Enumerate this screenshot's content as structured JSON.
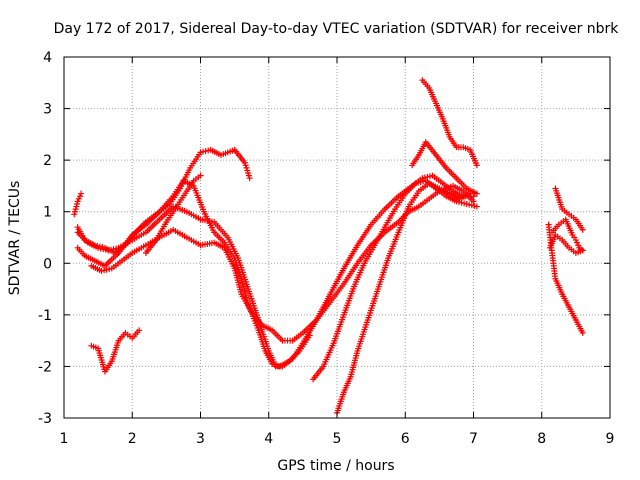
{
  "chart_data": {
    "type": "scatter",
    "title": "Day 172 of 2017, Sidereal Day-to-day VTEC variation (SDTVAR) for receiver nbrk",
    "xlabel": "GPS time / hours",
    "ylabel": "SDTVAR / TECUs",
    "xlim": [
      1,
      9
    ],
    "ylim": [
      -3,
      4
    ],
    "xticks": [
      "1",
      "2",
      "3",
      "4",
      "5",
      "6",
      "7",
      "8",
      "9"
    ],
    "yticks": [
      "-3",
      "-2",
      "-1",
      "0",
      "1",
      "2",
      "3",
      "4"
    ],
    "grid": true,
    "marker": "+",
    "color": "#ff0000",
    "series": [
      {
        "name": "arc1",
        "x": [
          1.2,
          1.3,
          1.45,
          1.6,
          1.75,
          1.9,
          2.05,
          2.2,
          2.4,
          2.55,
          2.7,
          2.85,
          3.0,
          3.15,
          3.3,
          3.5,
          3.65,
          3.72
        ],
        "y": [
          0.7,
          0.45,
          0.35,
          0.3,
          0.2,
          0.35,
          0.6,
          0.8,
          1.0,
          1.15,
          1.45,
          1.85,
          2.15,
          2.2,
          2.1,
          2.2,
          1.95,
          1.65
        ]
      },
      {
        "name": "arc2",
        "x": [
          1.2,
          1.3,
          1.45,
          1.6,
          1.8,
          2.0,
          2.2,
          2.4,
          2.6,
          2.75,
          2.9,
          3.05,
          3.2,
          3.35,
          3.5,
          3.6,
          3.7,
          3.85,
          3.95,
          4.05,
          4.15,
          4.3,
          4.45,
          4.6
        ],
        "y": [
          0.3,
          0.15,
          0.05,
          -0.05,
          0.2,
          0.55,
          0.75,
          1.0,
          1.3,
          1.6,
          1.5,
          1.0,
          0.6,
          0.4,
          0.1,
          -0.3,
          -0.8,
          -1.3,
          -1.7,
          -1.95,
          -2.0,
          -1.9,
          -1.7,
          -1.4
        ]
      },
      {
        "name": "arc3",
        "x": [
          1.2,
          1.35,
          1.5,
          1.65,
          1.8,
          2.0,
          2.2,
          2.4,
          2.6,
          2.8,
          3.0,
          3.2,
          3.4,
          3.55,
          3.7,
          3.85,
          4.0,
          4.1,
          4.2,
          4.35,
          4.5,
          4.7,
          4.9,
          5.1,
          5.3,
          5.5,
          5.7,
          5.9,
          6.1,
          6.25,
          6.4,
          6.55,
          6.7,
          6.85,
          7.0
        ],
        "y": [
          0.6,
          0.4,
          0.3,
          0.25,
          0.3,
          0.45,
          0.6,
          0.85,
          1.1,
          1.0,
          0.85,
          0.8,
          0.5,
          0.1,
          -0.5,
          -1.1,
          -1.7,
          -2.0,
          -2.0,
          -1.85,
          -1.55,
          -1.1,
          -0.6,
          -0.1,
          0.35,
          0.75,
          1.05,
          1.3,
          1.5,
          1.65,
          1.7,
          1.55,
          1.4,
          1.3,
          1.3
        ]
      },
      {
        "name": "arc4",
        "x": [
          1.4,
          1.55,
          1.7,
          1.85,
          2.0,
          2.2,
          2.4,
          2.6,
          2.8,
          3.0,
          3.2,
          3.35,
          3.5,
          3.6,
          3.75,
          3.9,
          4.05,
          4.2,
          4.35,
          4.5,
          4.7,
          4.9,
          5.1,
          5.3,
          5.5,
          5.7,
          5.9,
          6.05,
          6.2,
          6.35,
          6.5,
          6.7,
          6.85,
          7.0
        ],
        "y": [
          -0.05,
          -0.15,
          -0.1,
          0.05,
          0.2,
          0.35,
          0.5,
          0.65,
          0.5,
          0.35,
          0.4,
          0.3,
          -0.1,
          -0.6,
          -0.95,
          -1.2,
          -1.3,
          -1.5,
          -1.5,
          -1.35,
          -1.1,
          -0.75,
          -0.4,
          0.0,
          0.35,
          0.6,
          0.8,
          1.0,
          1.1,
          1.25,
          1.4,
          1.5,
          1.4,
          1.2
        ]
      },
      {
        "name": "arc5",
        "x": [
          1.15,
          1.2,
          1.25
        ],
        "y": [
          0.95,
          1.2,
          1.35
        ]
      },
      {
        "name": "arc6",
        "x": [
          1.4,
          1.5,
          1.6,
          1.7,
          1.8,
          1.9,
          2.0,
          2.1
        ],
        "y": [
          -1.6,
          -1.65,
          -2.1,
          -1.9,
          -1.5,
          -1.35,
          -1.45,
          -1.3
        ]
      },
      {
        "name": "arc7",
        "x": [
          2.2,
          2.35,
          2.5,
          2.65,
          2.8,
          2.9,
          3.0
        ],
        "y": [
          0.2,
          0.45,
          0.8,
          1.1,
          1.4,
          1.6,
          1.7
        ]
      },
      {
        "name": "arc8",
        "x": [
          4.65,
          4.8,
          4.95,
          5.1,
          5.25,
          5.4,
          5.55,
          5.7,
          5.85,
          6.0,
          6.15,
          6.3,
          6.45,
          6.6,
          6.75,
          6.9,
          7.05
        ],
        "y": [
          -2.25,
          -2.0,
          -1.55,
          -1.0,
          -0.45,
          0.0,
          0.35,
          0.7,
          1.05,
          1.35,
          1.55,
          1.6,
          1.45,
          1.3,
          1.2,
          1.15,
          1.1
        ]
      },
      {
        "name": "arc9",
        "x": [
          5.0,
          5.1,
          5.2,
          5.3,
          5.45,
          5.6,
          5.75,
          5.9,
          6.05,
          6.2,
          6.35,
          6.5,
          6.65,
          6.8,
          6.95
        ],
        "y": [
          -2.9,
          -2.5,
          -2.2,
          -1.7,
          -1.1,
          -0.5,
          0.1,
          0.6,
          1.1,
          1.4,
          1.55,
          1.45,
          1.35,
          1.25,
          1.35
        ]
      },
      {
        "name": "arc10",
        "x": [
          6.1,
          6.2,
          6.3,
          6.45,
          6.6,
          6.75,
          6.9,
          7.05
        ],
        "y": [
          1.9,
          2.1,
          2.35,
          2.1,
          1.85,
          1.65,
          1.45,
          1.35
        ]
      },
      {
        "name": "arc11",
        "x": [
          6.25,
          6.35,
          6.45,
          6.55,
          6.65,
          6.75,
          6.85,
          6.95,
          7.05
        ],
        "y": [
          3.55,
          3.4,
          3.1,
          2.8,
          2.45,
          2.25,
          2.25,
          2.2,
          1.9
        ]
      },
      {
        "name": "arc12",
        "x": [
          8.1,
          8.15,
          8.2,
          8.3,
          8.4,
          8.5,
          8.6
        ],
        "y": [
          0.75,
          0.2,
          -0.3,
          -0.6,
          -0.85,
          -1.1,
          -1.35
        ]
      },
      {
        "name": "arc13",
        "x": [
          8.15,
          8.25,
          8.35,
          8.45,
          8.5,
          8.55,
          8.6
        ],
        "y": [
          0.6,
          0.75,
          0.85,
          0.55,
          0.45,
          0.3,
          0.25
        ]
      },
      {
        "name": "arc14",
        "x": [
          8.2,
          8.3,
          8.4,
          8.5,
          8.6
        ],
        "y": [
          1.45,
          1.05,
          0.95,
          0.85,
          0.65
        ]
      },
      {
        "name": "arc15",
        "x": [
          8.12,
          8.2,
          8.3,
          8.4,
          8.5,
          8.6
        ],
        "y": [
          0.3,
          0.55,
          0.45,
          0.3,
          0.2,
          0.25
        ]
      }
    ]
  }
}
